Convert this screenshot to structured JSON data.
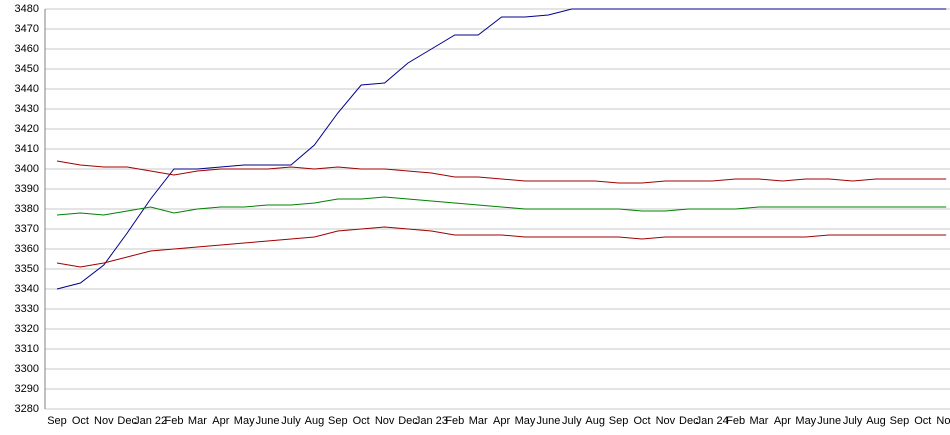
{
  "chart_data": {
    "type": "line",
    "categories": [
      "Sep",
      "Oct",
      "Nov",
      "Dec",
      "Jan 22",
      "Feb",
      "Mar",
      "Apr",
      "May",
      "June",
      "July",
      "Aug",
      "Sep",
      "Oct",
      "Nov",
      "Dec",
      "Jan 23",
      "Feb",
      "Mar",
      "Apr",
      "May",
      "June",
      "July",
      "Aug",
      "Sep",
      "Oct",
      "Nov",
      "Dec",
      "Jan 24",
      "Feb",
      "Mar",
      "Apr",
      "May",
      "June",
      "July",
      "Aug",
      "Sep",
      "Oct",
      "Nov"
    ],
    "series": [
      {
        "color": "#00008b",
        "values": [
          3340,
          3343,
          3352,
          3368,
          3385,
          3400,
          3400,
          3401,
          3402,
          3402,
          3402,
          3412,
          3428,
          3442,
          3443,
          3453,
          3460,
          3467,
          3467,
          3476,
          3476,
          3477,
          3480,
          3480,
          3480,
          3480,
          3480,
          3480,
          3480,
          3480,
          3480,
          3480,
          3480,
          3480,
          3480,
          3480,
          3480,
          3480,
          3480
        ]
      },
      {
        "color": "#a00000",
        "values": [
          3404,
          3402,
          3401,
          3401,
          3399,
          3397,
          3399,
          3400,
          3400,
          3400,
          3401,
          3400,
          3401,
          3400,
          3400,
          3399,
          3398,
          3396,
          3396,
          3395,
          3394,
          3394,
          3394,
          3394,
          3393,
          3393,
          3394,
          3394,
          3394,
          3395,
          3395,
          3394,
          3395,
          3395,
          3394,
          3395,
          3395,
          3395,
          3395
        ]
      },
      {
        "color": "#008000",
        "values": [
          3377,
          3378,
          3377,
          3379,
          3381,
          3378,
          3380,
          3381,
          3381,
          3382,
          3382,
          3383,
          3385,
          3385,
          3386,
          3385,
          3384,
          3383,
          3382,
          3381,
          3380,
          3380,
          3380,
          3380,
          3380,
          3379,
          3379,
          3380,
          3380,
          3380,
          3381,
          3381,
          3381,
          3381,
          3381,
          3381,
          3381,
          3381,
          3381
        ]
      },
      {
        "color": "#a00000",
        "values": [
          3353,
          3351,
          3353,
          3356,
          3359,
          3360,
          3361,
          3362,
          3363,
          3364,
          3365,
          3366,
          3369,
          3370,
          3371,
          3370,
          3369,
          3367,
          3367,
          3367,
          3366,
          3366,
          3366,
          3366,
          3366,
          3365,
          3366,
          3366,
          3366,
          3366,
          3366,
          3366,
          3366,
          3367,
          3367,
          3367,
          3367,
          3367,
          3367
        ]
      }
    ],
    "ylim": [
      3280,
      3480
    ],
    "yticks": [
      3280,
      3290,
      3300,
      3310,
      3320,
      3330,
      3340,
      3350,
      3360,
      3370,
      3380,
      3390,
      3400,
      3410,
      3420,
      3430,
      3440,
      3450,
      3460,
      3470,
      3480
    ],
    "grid": true
  }
}
